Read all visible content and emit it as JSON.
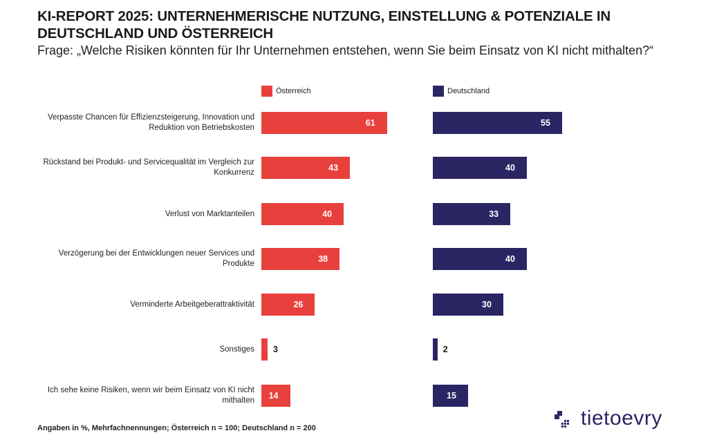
{
  "title": "KI-REPORT 2025: UNTERNEHMERISCHE NUTZUNG, EINSTELLUNG & POTENZIALE IN DEUTSCHLAND UND ÖSTERREICH",
  "question": "Frage: „Welche Risiken könnten für Ihr Unternehmen entstehen, wenn Sie beim Einsatz von KI nicht mithalten?“",
  "footer": "Angaben in %, Mehrfachnennungen; Österreich n = 100; Deutschland n = 200",
  "logo": "tietoevry",
  "colors": {
    "oesterreich": "#e8403d",
    "deutschland": "#2a2563"
  },
  "chart_data": {
    "type": "bar",
    "orientation": "horizontal",
    "unit": "%",
    "categories": [
      "Verpasste Chancen für Effizienzsteigerung, Innovation und Reduktion von Betriebskosten",
      "Rückstand bei Produkt- und Servicequalität im Vergleich zur Konkurrenz",
      "Verlust von Marktanteilen",
      "Verzögerung bei der Entwicklungen neuer Services und Produkte",
      "Verminderte Arbeitgeberattraktivität",
      "Sonstiges",
      "Ich sehe keine Risiken, wenn wir beim Einsatz von KI nicht mithalten"
    ],
    "series": [
      {
        "name": "Österreich",
        "color": "#e8403d",
        "values": [
          61,
          43,
          40,
          38,
          26,
          3,
          14
        ]
      },
      {
        "name": "Deutschland",
        "color": "#2a2563",
        "values": [
          55,
          40,
          33,
          40,
          30,
          2,
          15
        ]
      }
    ],
    "legend": "top",
    "grid": false
  }
}
